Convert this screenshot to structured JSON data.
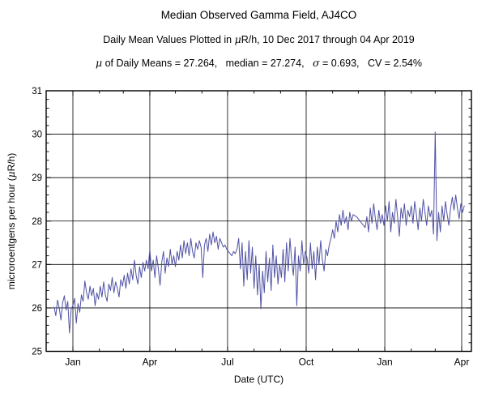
{
  "header": {
    "title": "Median Observed Gamma Field, AJ4CO",
    "subtitle": "Daily Mean Values Plotted in μR/h, 10 Dec 2017 through 04 Apr 2019",
    "stats": "μ of Daily Means = 27.264,   median = 27.274,   σ = 0.693,   CV = 2.54%"
  },
  "chart_data": {
    "type": "line",
    "title": "Median Observed Gamma Field, AJ4CO",
    "xlabel": "Date (UTC)",
    "ylabel": "microroentgens per hour (μR/h)",
    "start_date": "2017-12-10",
    "end_date": "2019-04-04",
    "ylim": [
      25,
      31
    ],
    "y_major_ticks": [
      25,
      26,
      27,
      28,
      29,
      30,
      31
    ],
    "y_minor_step": 0.2,
    "grid": true,
    "legend": "none",
    "line_color": "#5052A4",
    "frame_color": "#000000",
    "x_major_ticks": [
      {
        "label": "Jan",
        "day": 22
      },
      {
        "label": "Apr",
        "day": 112
      },
      {
        "label": "Jul",
        "day": 203
      },
      {
        "label": "Oct",
        "day": 295
      },
      {
        "label": "Jan",
        "day": 387
      },
      {
        "label": "Apr",
        "day": 477
      }
    ],
    "x_minor_tick_days": [
      53,
      81,
      142,
      173,
      234,
      265,
      326,
      356,
      418,
      446
    ],
    "series": [
      {
        "name": "daily-mean-gamma",
        "units": "uR/h",
        "start_day": 0,
        "day_step": 2,
        "values": [
          26.02,
          25.82,
          26.18,
          26.0,
          25.72,
          26.12,
          26.28,
          25.95,
          26.15,
          25.42,
          25.98,
          26.05,
          26.22,
          25.65,
          26.1,
          25.9,
          26.3,
          26.15,
          26.62,
          26.35,
          26.2,
          26.5,
          26.28,
          26.45,
          26.05,
          26.35,
          26.2,
          26.5,
          26.25,
          26.6,
          26.3,
          26.15,
          26.55,
          26.4,
          26.7,
          26.35,
          26.6,
          26.45,
          26.25,
          26.65,
          26.5,
          26.75,
          26.45,
          26.8,
          26.55,
          26.9,
          26.65,
          27.1,
          26.75,
          26.55,
          26.95,
          26.7,
          27.05,
          26.85,
          27.1,
          26.9,
          27.35,
          26.85,
          27.1,
          26.7,
          27.2,
          26.9,
          26.52,
          27.05,
          27.3,
          26.8,
          27.15,
          26.95,
          27.35,
          27.0,
          27.2,
          26.95,
          27.3,
          27.1,
          27.45,
          27.15,
          27.55,
          27.25,
          27.5,
          27.2,
          27.6,
          27.3,
          27.15,
          27.5,
          27.35,
          27.55,
          27.4,
          26.7,
          27.45,
          27.6,
          27.3,
          27.7,
          27.45,
          27.75,
          27.5,
          27.65,
          27.35,
          27.6,
          27.5,
          27.4,
          27.45,
          27.35,
          27.3,
          27.25,
          27.2,
          27.3,
          27.25,
          27.35,
          27.6,
          26.9,
          27.5,
          26.5,
          27.3,
          26.65,
          27.55,
          26.8,
          27.4,
          26.45,
          27.2,
          26.3,
          27.0,
          25.98,
          26.85,
          26.35,
          27.3,
          26.6,
          27.15,
          26.4,
          27.45,
          26.7,
          27.2,
          26.55,
          27.0,
          26.7,
          27.35,
          26.6,
          27.5,
          26.85,
          27.6,
          27.1,
          26.75,
          27.4,
          26.05,
          27.2,
          26.85,
          27.55,
          27.0,
          27.3,
          27.15,
          26.8,
          27.5,
          26.9,
          27.3,
          26.65,
          27.4,
          27.0,
          27.55,
          27.1,
          26.85,
          27.35,
          27.2,
          27.45,
          27.6,
          27.8,
          27.6,
          28.0,
          27.75,
          28.15,
          27.9,
          28.25,
          27.95,
          28.1,
          27.8,
          28.2,
          28.0,
          28.15,
          28.12,
          28.1,
          28.05,
          28.0,
          27.95,
          27.9,
          27.85,
          28.1,
          27.75,
          28.3,
          27.95,
          28.4,
          28.05,
          27.8,
          28.25,
          27.95,
          28.15,
          27.9,
          28.35,
          28.0,
          28.45,
          27.75,
          28.2,
          27.95,
          28.5,
          28.1,
          27.65,
          28.3,
          28.05,
          28.4,
          27.9,
          28.25,
          28.1,
          28.35,
          27.95,
          28.45,
          28.15,
          27.8,
          28.3,
          28.0,
          28.5,
          28.2,
          27.9,
          28.35,
          28.1,
          28.25,
          27.7,
          30.05,
          27.55,
          28.2,
          27.75,
          28.35,
          28.0,
          28.45,
          28.15,
          27.9,
          28.3,
          28.55,
          28.25,
          28.6,
          28.3,
          28.05,
          28.4,
          28.2,
          28.35
        ]
      }
    ],
    "annotations": {
      "mean": 27.264,
      "median": 27.274,
      "sigma": 0.693,
      "cv_percent": 2.54,
      "peak_value": 30.05,
      "min_value": 25.42
    }
  }
}
